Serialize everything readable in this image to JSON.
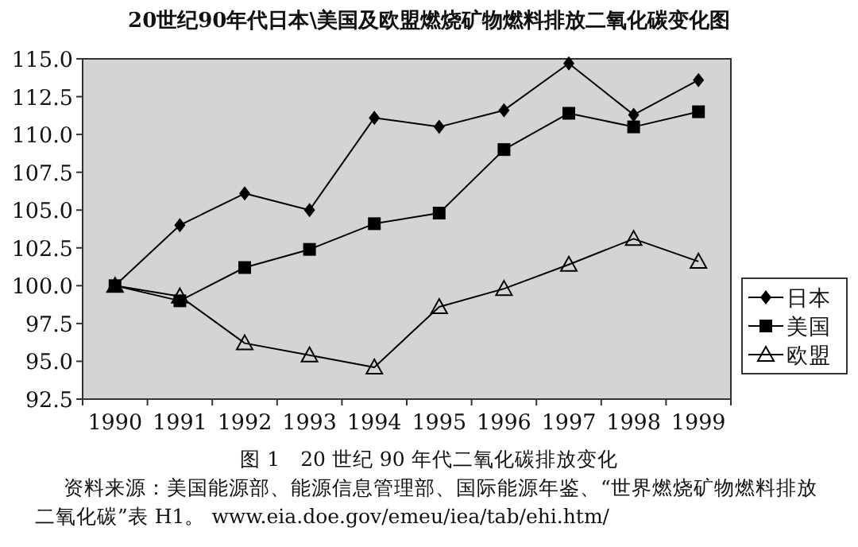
{
  "chart_data": {
    "type": "line",
    "title": "20世纪90年代日本\\美国及欧盟燃烧矿物燃料排放二氧化碳变化图",
    "categories": [
      "1990",
      "1991",
      "1992",
      "1993",
      "1994",
      "1995",
      "1996",
      "1997",
      "1998",
      "1999"
    ],
    "series": [
      {
        "name": "日本",
        "color": "#000000",
        "marker": "diamond",
        "values": [
          100,
          104.0,
          106.1,
          105.0,
          111.1,
          110.5,
          111.6,
          114.7,
          111.3,
          113.6
        ]
      },
      {
        "name": "美国",
        "color": "#000000",
        "marker": "square",
        "values": [
          100,
          99.0,
          101.2,
          102.4,
          104.1,
          104.8,
          109.0,
          111.4,
          110.5,
          111.5
        ]
      },
      {
        "name": "欧盟",
        "color": "#000000",
        "marker": "triangle",
        "values": [
          100,
          99.3,
          96.2,
          95.4,
          94.6,
          98.6,
          99.8,
          101.4,
          103.1,
          101.6
        ]
      }
    ],
    "ylim": [
      92.5,
      115
    ],
    "yticks": [
      {
        "value": 92.5,
        "label": "92.5"
      },
      {
        "value": 95,
        "label": "95.0"
      },
      {
        "value": 97.5,
        "label": "97.5"
      },
      {
        "value": 100,
        "label": "100.0"
      },
      {
        "value": 102.5,
        "label": "102.5"
      },
      {
        "value": 105,
        "label": "105.0"
      },
      {
        "value": 107.5,
        "label": "107.5"
      },
      {
        "value": 110,
        "label": "110.0"
      },
      {
        "value": 112.5,
        "label": "112.5"
      },
      {
        "value": 115,
        "label": "115.0"
      }
    ],
    "grid": false,
    "legend": "right",
    "line_style": "solid",
    "annotations": [
      "图 1　20 世纪 90 年代二氧化碳排放变化",
      "资料来源：美国能源部、能源信息管理部、国际能源年鉴、“世界燃烧矿物燃料排放二氧化碳”表 H1。 www.eia.doe.gov/emeu/iea/tab/ehi.htm/"
    ]
  }
}
